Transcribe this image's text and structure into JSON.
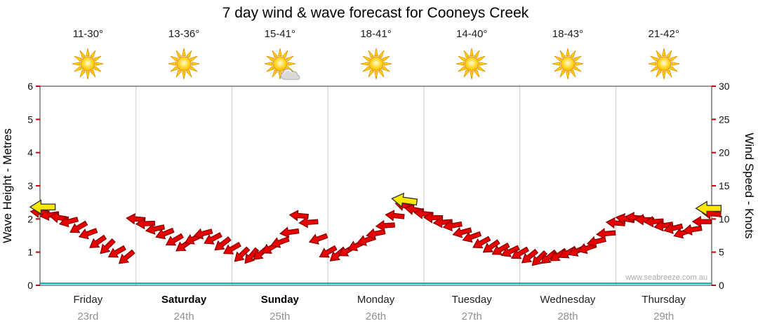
{
  "title": "7 day wind & wave forecast for Cooneys Creek",
  "watermark": "www.seabreeze.com.au",
  "days": [
    {
      "name": "Friday",
      "date": "23rd",
      "temp": "11-30°",
      "icon": "sun",
      "bold": false
    },
    {
      "name": "Saturday",
      "date": "24th",
      "temp": "13-36°",
      "icon": "sun",
      "bold": true
    },
    {
      "name": "Sunday",
      "date": "25th",
      "temp": "15-41°",
      "icon": "sun-cloud",
      "bold": true
    },
    {
      "name": "Monday",
      "date": "26th",
      "temp": "18-41°",
      "icon": "sun",
      "bold": false
    },
    {
      "name": "Tuesday",
      "date": "27th",
      "temp": "14-40°",
      "icon": "sun",
      "bold": false
    },
    {
      "name": "Wednesday",
      "date": "28th",
      "temp": "18-43°",
      "icon": "sun",
      "bold": false
    },
    {
      "name": "Thursday",
      "date": "29th",
      "temp": "21-42°",
      "icon": "sun",
      "bold": false
    }
  ],
  "colors": {
    "arrow": "#e60000",
    "arrow_outline": "#7d0000",
    "highlight": "#ffe800",
    "highlight_outline": "#333333",
    "wave_line": "#00b0b0",
    "grid": "#c9c9c9",
    "tick": "#cc0000",
    "border": "#555555",
    "tick_label": "#111111"
  },
  "chart_data": {
    "type": "wind-arrow-time-series",
    "x_unit": "days",
    "x_range": [
      0,
      7
    ],
    "left_axis": {
      "label": "Wave Height - Metres",
      "range": [
        0,
        6
      ],
      "ticks": [
        0,
        1,
        2,
        3,
        4,
        5,
        6
      ]
    },
    "right_axis": {
      "label": "Wind Speed - Knots",
      "range": [
        0,
        30
      ],
      "ticks": [
        0,
        5,
        10,
        15,
        20,
        25,
        30
      ]
    },
    "grid": "vertical-day-boundaries",
    "wind_arrows_tka": [
      [
        0.0,
        11.0,
        185
      ],
      [
        0.1,
        10.6,
        172
      ],
      [
        0.2,
        10.2,
        190
      ],
      [
        0.3,
        9.6,
        165
      ],
      [
        0.4,
        8.7,
        150
      ],
      [
        0.5,
        7.8,
        160
      ],
      [
        0.6,
        6.5,
        145
      ],
      [
        0.7,
        5.8,
        135
      ],
      [
        0.8,
        5.0,
        150
      ],
      [
        0.9,
        4.2,
        140
      ],
      [
        1.0,
        10.0,
        185
      ],
      [
        1.1,
        9.3,
        178
      ],
      [
        1.2,
        8.5,
        168
      ],
      [
        1.3,
        7.8,
        158
      ],
      [
        1.4,
        6.8,
        150
      ],
      [
        1.5,
        6.0,
        145
      ],
      [
        1.6,
        7.0,
        155
      ],
      [
        1.7,
        7.8,
        165
      ],
      [
        1.8,
        7.0,
        152
      ],
      [
        1.9,
        6.2,
        142
      ],
      [
        2.0,
        5.5,
        150
      ],
      [
        2.1,
        4.6,
        136
      ],
      [
        2.2,
        4.4,
        130
      ],
      [
        2.3,
        4.8,
        140
      ],
      [
        2.4,
        5.6,
        150
      ],
      [
        2.5,
        6.5,
        160
      ],
      [
        2.6,
        8.0,
        172
      ],
      [
        2.7,
        10.5,
        185
      ],
      [
        2.8,
        9.5,
        176
      ],
      [
        2.9,
        7.0,
        160
      ],
      [
        3.0,
        5.0,
        150
      ],
      [
        3.1,
        4.6,
        140
      ],
      [
        3.2,
        5.2,
        150
      ],
      [
        3.3,
        6.0,
        156
      ],
      [
        3.4,
        6.8,
        162
      ],
      [
        3.5,
        7.8,
        168
      ],
      [
        3.6,
        9.0,
        176
      ],
      [
        3.7,
        10.5,
        186
      ],
      [
        3.8,
        12.0,
        194
      ],
      [
        3.9,
        11.4,
        190
      ],
      [
        4.0,
        10.8,
        186
      ],
      [
        4.1,
        10.2,
        181
      ],
      [
        4.2,
        9.5,
        176
      ],
      [
        4.3,
        9.0,
        170
      ],
      [
        4.4,
        8.0,
        165
      ],
      [
        4.5,
        7.3,
        160
      ],
      [
        4.6,
        6.4,
        151
      ],
      [
        4.7,
        5.8,
        145
      ],
      [
        4.8,
        5.4,
        150
      ],
      [
        4.9,
        5.1,
        155
      ],
      [
        5.0,
        4.8,
        150
      ],
      [
        5.1,
        4.3,
        141
      ],
      [
        5.2,
        4.0,
        135
      ],
      [
        5.3,
        4.2,
        141
      ],
      [
        5.4,
        4.5,
        146
      ],
      [
        5.5,
        4.9,
        151
      ],
      [
        5.6,
        5.2,
        156
      ],
      [
        5.7,
        5.6,
        161
      ],
      [
        5.8,
        6.6,
        166
      ],
      [
        5.9,
        7.8,
        175
      ],
      [
        6.0,
        9.4,
        185
      ],
      [
        6.1,
        10.0,
        190
      ],
      [
        6.2,
        10.2,
        186
      ],
      [
        6.3,
        9.9,
        181
      ],
      [
        6.4,
        9.6,
        176
      ],
      [
        6.5,
        9.0,
        171
      ],
      [
        6.6,
        8.6,
        166
      ],
      [
        6.7,
        7.9,
        161
      ],
      [
        6.8,
        8.4,
        171
      ],
      [
        6.9,
        9.6,
        180
      ],
      [
        7.0,
        10.8,
        185
      ]
    ],
    "highlight_arrows_tka": [
      [
        0.03,
        11.8,
        180
      ],
      [
        3.8,
        12.8,
        188
      ],
      [
        6.97,
        11.6,
        180
      ]
    ],
    "wave_height_line": {
      "points_tm": [
        [
          0,
          0.06
        ],
        [
          7,
          0.06
        ]
      ]
    }
  }
}
